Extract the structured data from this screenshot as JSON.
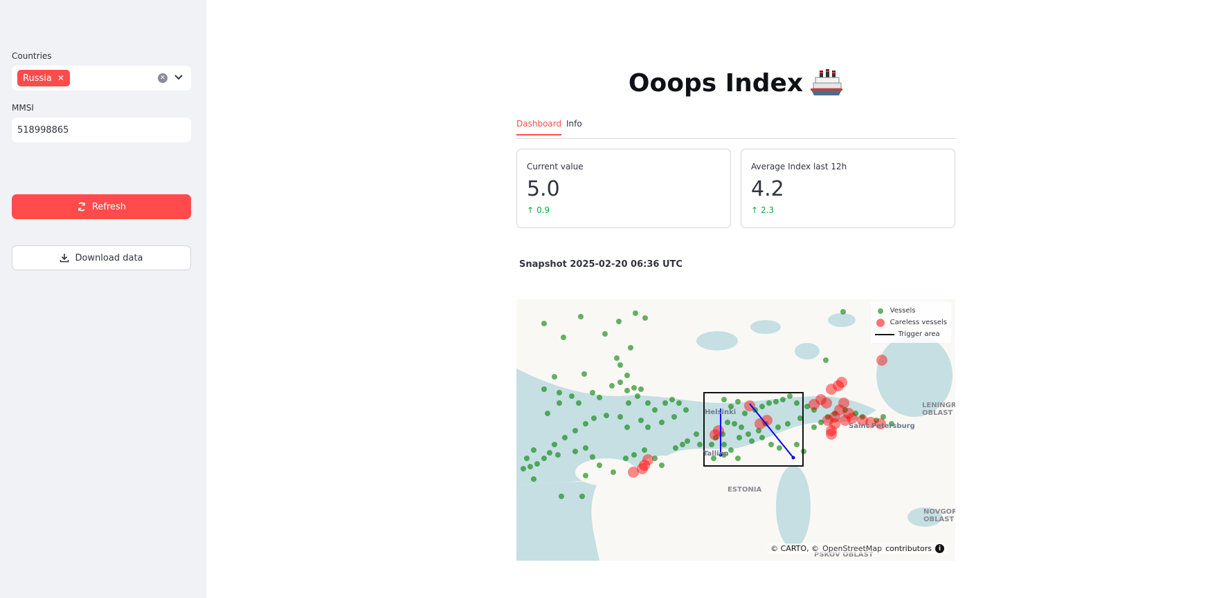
{
  "sidebar": {
    "countries_label": "Countries",
    "countries_selected": [
      "Russia"
    ],
    "mmsi_label": "MMSI",
    "mmsi_value": "518998865",
    "refresh_label": "Refresh",
    "download_label": "Download data"
  },
  "main": {
    "title": "Ooops Index",
    "tabs": [
      {
        "label": "Dashboard",
        "active": true
      },
      {
        "label": "Info",
        "active": false
      }
    ],
    "metrics": [
      {
        "label": "Current value",
        "value": "5.0",
        "delta": "0.9"
      },
      {
        "label": "Average Index last 12h",
        "value": "4.2",
        "delta": "2.3"
      }
    ],
    "snapshot": "Snapshot 2025-02-20 06:36 UTC"
  },
  "map": {
    "legend": {
      "vessels": "Vessels",
      "careless": "Careless vessels",
      "trigger": "Trigger area"
    },
    "places": {
      "helsinki": "Helsinki",
      "tallinn": "Tallinn",
      "st_petersburg": "Saint Petersburg",
      "leningrad": "LENINGRAD OBLAST",
      "estonia": "ESTONIA",
      "novgorod": "NOVGOROD OBLAST",
      "pskov": "PSKOV OBLAST"
    },
    "attribution": {
      "carto": "© CARTO, ©",
      "osm": "OpenStreetMap",
      "contributors": "contributors"
    },
    "colors": {
      "vessel": "#008000",
      "careless": "#ff0000",
      "line": "#0000ff",
      "sea": "#c5dfe3",
      "land": "#faf8f4"
    }
  }
}
